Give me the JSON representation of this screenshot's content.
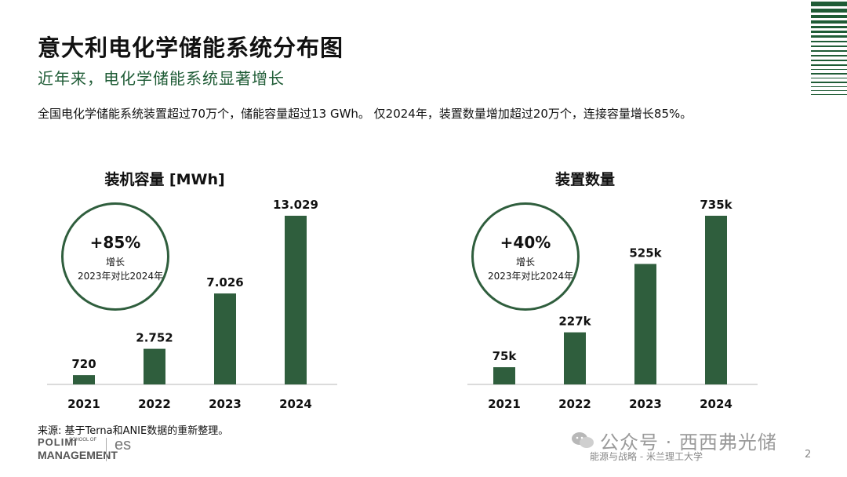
{
  "title": "意大利电化学储能系统分布图",
  "subtitle": "近年来，电化学储能系统显著增长",
  "summary": "全国电化学储能系统装置超过70万个，储能容量超过13 GWh。 仅2024年，装置数量增加超过20万个，连接容量增长85%。",
  "colors": {
    "bar": "#2f5e3d",
    "accent": "#1f5c36"
  },
  "chart_data": [
    {
      "type": "bar",
      "title": "装机容量 [MWh]",
      "categories": [
        "2021",
        "2022",
        "2023",
        "2024"
      ],
      "values": [
        720,
        2752,
        7026,
        13029
      ],
      "value_labels": [
        "720",
        "2.752",
        "7.026",
        "13.029"
      ],
      "ylim": [
        0,
        13029
      ],
      "xlabel": "",
      "ylabel": "",
      "annotation": {
        "value": "+85%",
        "label": "增长",
        "comparison": "2023年对比2024年"
      }
    },
    {
      "type": "bar",
      "title": "装置数量",
      "categories": [
        "2021",
        "2022",
        "2023",
        "2024"
      ],
      "values": [
        75,
        227,
        525,
        735
      ],
      "value_labels": [
        "75k",
        "227k",
        "525k",
        "735k"
      ],
      "ylim": [
        0,
        735
      ],
      "xlabel": "",
      "ylabel": "",
      "annotation": {
        "value": "+40%",
        "label": "增长",
        "comparison": "2023年对比2024年"
      }
    }
  ],
  "source": "来源: 基于Terna和ANIE数据的重新整理。",
  "logos": {
    "polimi_line1": "POLIMI",
    "polimi_line2": "MANAGEMENT",
    "polimi_small": "SCHOOL OF",
    "es": "es"
  },
  "watermark": "公众号 · 西西弗光储",
  "footer": "能源与战略 - 米兰理工大学",
  "page_number": "2"
}
